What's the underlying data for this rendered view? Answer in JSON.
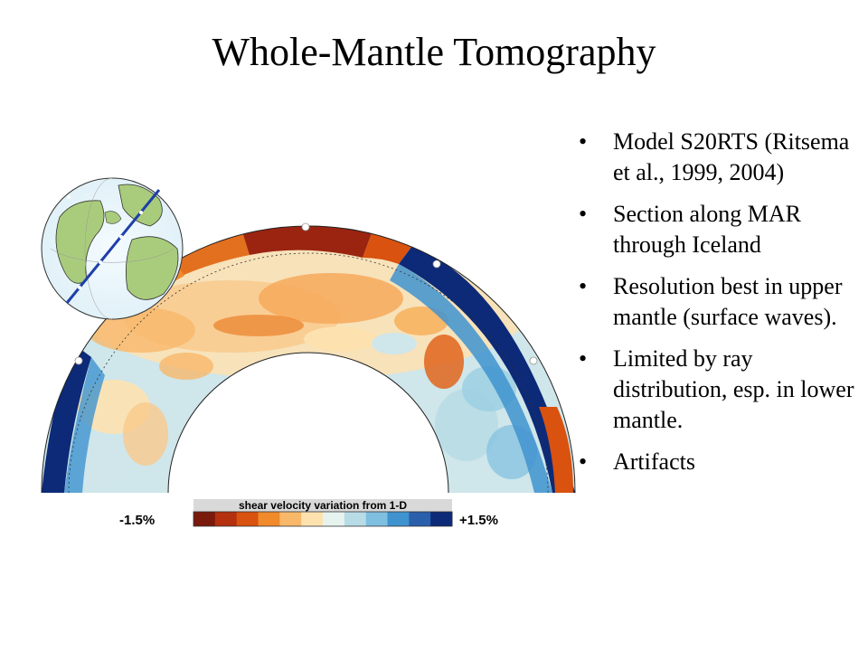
{
  "slide": {
    "title": "Whole-Mantle Tomography"
  },
  "bullets": [
    "Model S20RTS (Ritsema et al., 1999, 2004)",
    "Section along MAR through Iceland",
    "Resolution best in upper mantle (surface waves).",
    "Limited by ray distribution, esp. in lower mantle.",
    "Artifacts"
  ],
  "figure": {
    "scale_title": "shear velocity variation from 1-D",
    "scale_min_label": "-1.5%",
    "scale_max_label": "+1.5%",
    "scale_colors": [
      "#7a1a0c",
      "#b4300e",
      "#d9520f",
      "#f08a2a",
      "#f7b86a",
      "#fde2b0",
      "#e6f3ef",
      "#b8dce6",
      "#7fbfe0",
      "#3f93cf",
      "#2a5fab",
      "#0c2a78"
    ]
  }
}
